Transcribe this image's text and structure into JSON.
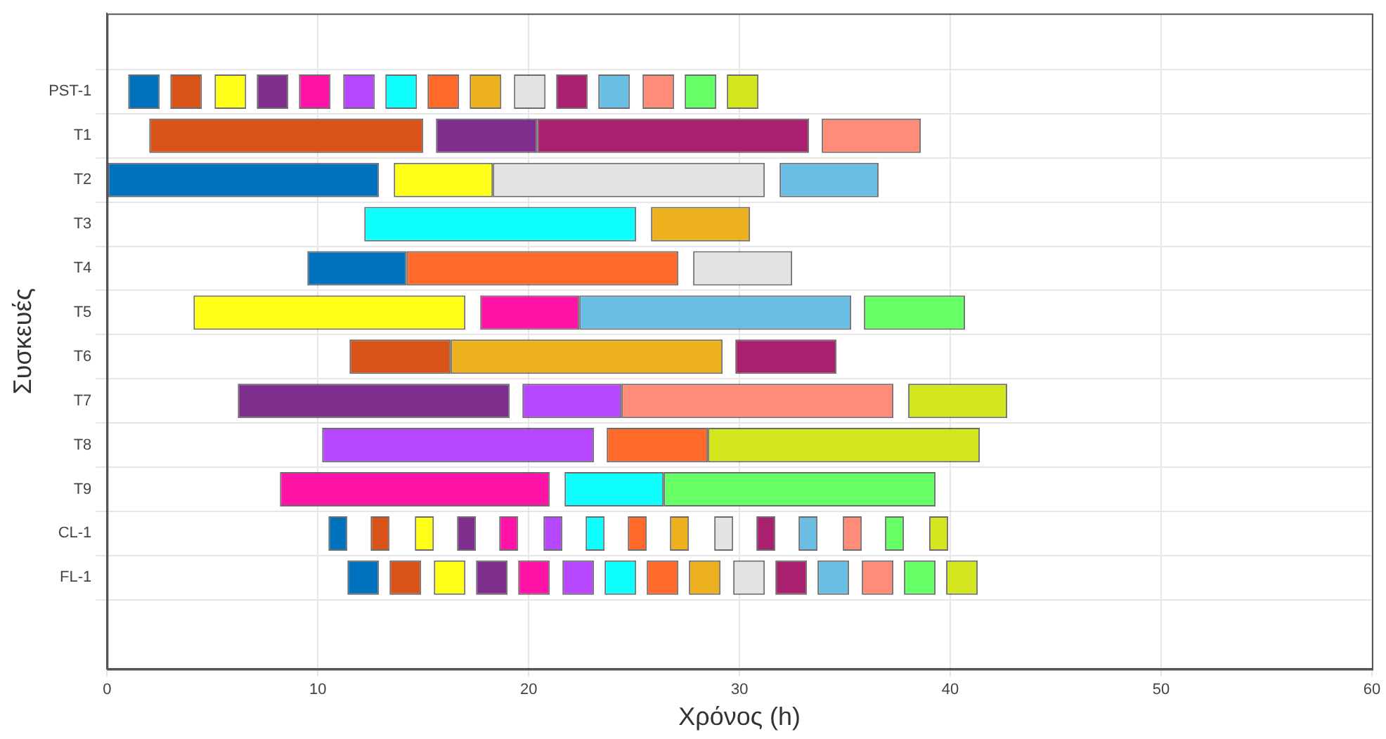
{
  "chart_data": {
    "type": "bar",
    "orientation": "horizontal",
    "xlabel": "Χρόνος (h)",
    "ylabel": "Συσκευές",
    "categories": [
      "PST-1",
      "T1",
      "T2",
      "T3",
      "T4",
      "T5",
      "T6",
      "T7",
      "T8",
      "T9",
      "CL-1",
      "FL-1"
    ],
    "xlim": [
      0,
      60
    ],
    "xticks": [
      0,
      10,
      20,
      30,
      40,
      50,
      60
    ],
    "grid": true,
    "legend": false,
    "series": [
      {
        "color": "#0072bd",
        "base": [
          1.0,
          null,
          0,
          null,
          9.5,
          null,
          null,
          null,
          null,
          null,
          10.5,
          11.4
        ],
        "values": [
          1.5,
          null,
          12.9,
          null,
          4.7,
          null,
          null,
          null,
          null,
          null,
          0.9,
          1.5
        ]
      },
      {
        "color": "#d95319",
        "base": [
          3.0,
          2.0,
          null,
          null,
          null,
          null,
          11.5,
          null,
          null,
          null,
          12.5,
          13.4
        ],
        "values": [
          1.5,
          13.0,
          null,
          null,
          null,
          null,
          4.8,
          null,
          null,
          null,
          0.9,
          1.5
        ]
      },
      {
        "color": "#ffff1a",
        "base": [
          5.1,
          null,
          13.6,
          null,
          null,
          4.1,
          null,
          null,
          null,
          null,
          14.6,
          15.5
        ],
        "values": [
          1.5,
          null,
          4.7,
          null,
          null,
          12.9,
          null,
          null,
          null,
          null,
          0.9,
          1.5
        ]
      },
      {
        "color": "#7e2f8e",
        "base": [
          7.1,
          15.6,
          null,
          null,
          null,
          null,
          null,
          6.2,
          null,
          null,
          16.6,
          17.5
        ],
        "values": [
          1.5,
          4.8,
          null,
          null,
          null,
          null,
          null,
          12.9,
          null,
          null,
          0.9,
          1.5
        ]
      },
      {
        "color": "#ff13a6",
        "base": [
          9.1,
          null,
          null,
          null,
          null,
          17.7,
          null,
          null,
          null,
          8.2,
          18.6,
          19.5
        ],
        "values": [
          1.5,
          null,
          null,
          null,
          null,
          4.7,
          null,
          null,
          null,
          12.8,
          0.9,
          1.5
        ]
      },
      {
        "color": "#b746ff",
        "base": [
          11.2,
          null,
          null,
          null,
          null,
          null,
          null,
          19.7,
          10.2,
          null,
          20.7,
          21.6
        ],
        "values": [
          1.5,
          null,
          null,
          null,
          null,
          null,
          null,
          4.7,
          12.9,
          null,
          0.9,
          1.5
        ]
      },
      {
        "color": "#0fffff",
        "base": [
          13.2,
          null,
          null,
          12.2,
          null,
          null,
          null,
          null,
          null,
          21.7,
          22.7,
          23.6
        ],
        "values": [
          1.5,
          null,
          null,
          12.9,
          null,
          null,
          null,
          null,
          null,
          4.7,
          0.9,
          1.5
        ]
      },
      {
        "color": "#ff6929",
        "base": [
          15.2,
          null,
          null,
          null,
          14.2,
          null,
          null,
          null,
          23.7,
          null,
          24.7,
          25.6
        ],
        "values": [
          1.5,
          null,
          null,
          null,
          12.9,
          null,
          null,
          null,
          4.8,
          null,
          0.9,
          1.5
        ]
      },
      {
        "color": "#edb120",
        "base": [
          17.2,
          null,
          null,
          25.8,
          null,
          null,
          16.3,
          null,
          null,
          null,
          26.7,
          27.6
        ],
        "values": [
          1.5,
          null,
          null,
          4.7,
          null,
          null,
          12.9,
          null,
          null,
          null,
          0.9,
          1.5
        ]
      },
      {
        "color": "#e3e3e3",
        "base": [
          19.3,
          null,
          18.3,
          null,
          27.8,
          null,
          null,
          null,
          null,
          null,
          28.8,
          29.7
        ],
        "values": [
          1.5,
          null,
          12.9,
          null,
          4.7,
          null,
          null,
          null,
          null,
          null,
          0.9,
          1.5
        ]
      },
      {
        "color": "#a8206e",
        "base": [
          21.3,
          20.4,
          null,
          null,
          null,
          null,
          29.8,
          null,
          null,
          null,
          30.8,
          31.7
        ],
        "values": [
          1.5,
          12.9,
          null,
          null,
          null,
          null,
          4.8,
          null,
          null,
          null,
          0.9,
          1.5
        ]
      },
      {
        "color": "#6bbee3",
        "base": [
          23.3,
          null,
          31.9,
          null,
          null,
          22.4,
          null,
          null,
          null,
          null,
          32.8,
          33.7
        ],
        "values": [
          1.5,
          null,
          4.7,
          null,
          null,
          12.9,
          null,
          null,
          null,
          null,
          0.9,
          1.5
        ]
      },
      {
        "color": "#ff8c78",
        "base": [
          25.4,
          33.9,
          null,
          null,
          null,
          null,
          null,
          24.4,
          null,
          null,
          34.9,
          35.8
        ],
        "values": [
          1.5,
          4.7,
          null,
          null,
          null,
          null,
          null,
          12.9,
          null,
          null,
          0.9,
          1.5
        ]
      },
      {
        "color": "#66ff66",
        "base": [
          27.4,
          null,
          null,
          null,
          null,
          35.9,
          null,
          null,
          null,
          26.4,
          36.9,
          37.8
        ],
        "values": [
          1.5,
          null,
          null,
          null,
          null,
          4.8,
          null,
          null,
          null,
          12.9,
          0.9,
          1.5
        ]
      },
      {
        "color": "#d4e61f",
        "base": [
          29.4,
          null,
          null,
          null,
          null,
          null,
          null,
          38.0,
          28.5,
          null,
          39.0,
          39.8
        ],
        "values": [
          1.5,
          null,
          null,
          null,
          null,
          null,
          null,
          4.7,
          12.9,
          null,
          0.9,
          1.5
        ]
      }
    ]
  }
}
